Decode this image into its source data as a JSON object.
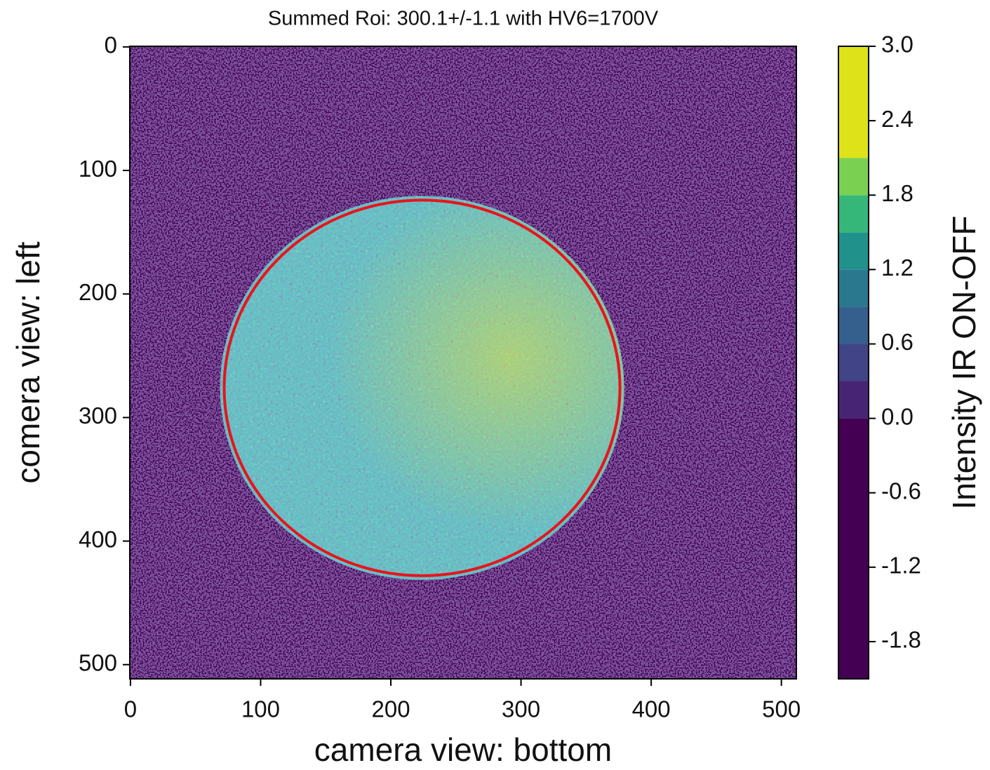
{
  "chart_data": {
    "type": "heatmap",
    "title": "Summed Roi: 300.1+/-1.1 with HV6=1700V",
    "xlabel": "camera view: bottom",
    "ylabel": "comera view: left",
    "xlim": [
      -0.5,
      511.5
    ],
    "ylim": [
      511.5,
      -0.5
    ],
    "xticks": [
      0,
      100,
      200,
      300,
      400,
      500
    ],
    "yticks": [
      0,
      100,
      200,
      300,
      400,
      500
    ],
    "circle": {
      "cx": 224,
      "cy": 276,
      "r": 152,
      "color": "#e8141c"
    },
    "colorbar": {
      "label": "Intensity IR ON-OFF",
      "levels": [
        -2.1,
        0,
        0.3,
        0.6,
        0.9,
        1.2,
        1.5,
        1.8,
        2.1,
        3
      ],
      "colors": [
        "#440154",
        "#482475",
        "#414487",
        "#355f8d",
        "#2a788e",
        "#21918c",
        "#35b779",
        "#7ad151",
        "#dde318",
        "#fde725"
      ],
      "ticks": [
        {
          "value": 3,
          "label": "3.0"
        },
        2.4,
        1.8,
        1.2,
        0.6,
        {
          "value": 0,
          "label": "0.0"
        },
        -0.6,
        -1.2,
        -1.8
      ]
    }
  }
}
